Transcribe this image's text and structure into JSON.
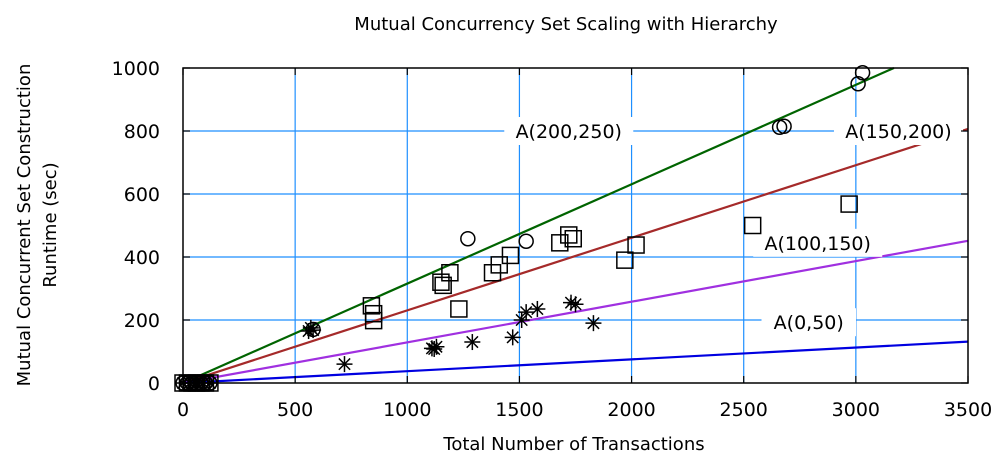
{
  "chart_data": {
    "type": "scatter",
    "title": "Mutual Concurrency Set Scaling with Hierarchy",
    "xlabel": "Total Number of Transactions",
    "ylabel": [
      "Mutual Concurrent Set Construction",
      "Runtime (sec)"
    ],
    "xlim": [
      0,
      3500
    ],
    "ylim": [
      0,
      1000
    ],
    "xticks": [
      0,
      500,
      1000,
      1500,
      2000,
      2500,
      3000,
      3500
    ],
    "yticks": [
      0,
      200,
      400,
      600,
      800,
      1000
    ],
    "grid": true,
    "grid_color": "#1e8fff",
    "lines": [
      {
        "label": "A(200,250)",
        "color": "#006400",
        "slope": 0.3155,
        "label_at": [
          1720,
          800
        ]
      },
      {
        "label": "A(150,200)",
        "color": "#a52a2a",
        "slope": 0.2305,
        "label_at": [
          3190,
          800
        ]
      },
      {
        "label": "A(100,150)",
        "color": "#a030e0",
        "slope": 0.129,
        "label_at": [
          2830,
          445
        ]
      },
      {
        "label": "A(0,50)",
        "color": "#0000e0",
        "slope": 0.0375,
        "label_at": [
          2790,
          193
        ]
      }
    ],
    "series": [
      {
        "marker": "circle",
        "points": [
          [
            1270,
            458
          ],
          [
            1530,
            450
          ],
          [
            2660,
            812
          ],
          [
            2680,
            815
          ],
          [
            3010,
            950
          ],
          [
            3030,
            985
          ],
          [
            580,
            170
          ],
          [
            0,
            0
          ],
          [
            20,
            0
          ],
          [
            40,
            0
          ],
          [
            60,
            0
          ],
          [
            80,
            0
          ],
          [
            100,
            0
          ],
          [
            120,
            0
          ]
        ]
      },
      {
        "marker": "square",
        "points": [
          [
            840,
            245
          ],
          [
            850,
            220
          ],
          [
            850,
            198
          ],
          [
            1150,
            320
          ],
          [
            1160,
            310
          ],
          [
            1190,
            350
          ],
          [
            1230,
            235
          ],
          [
            1380,
            350
          ],
          [
            1410,
            375
          ],
          [
            1460,
            405
          ],
          [
            1680,
            445
          ],
          [
            1720,
            470
          ],
          [
            1740,
            458
          ],
          [
            1970,
            390
          ],
          [
            2020,
            438
          ],
          [
            2540,
            500
          ],
          [
            2970,
            568
          ],
          [
            0,
            0
          ],
          [
            20,
            0
          ],
          [
            40,
            0
          ],
          [
            60,
            0
          ],
          [
            80,
            0
          ],
          [
            100,
            0
          ],
          [
            120,
            0
          ]
        ]
      },
      {
        "marker": "star",
        "points": [
          [
            560,
            165
          ],
          [
            570,
            175
          ],
          [
            580,
            168
          ],
          [
            720,
            60
          ],
          [
            1110,
            110
          ],
          [
            1120,
            108
          ],
          [
            1130,
            115
          ],
          [
            1290,
            130
          ],
          [
            1470,
            145
          ],
          [
            1510,
            200
          ],
          [
            1530,
            225
          ],
          [
            1580,
            235
          ],
          [
            1730,
            255
          ],
          [
            1750,
            250
          ],
          [
            1830,
            190
          ],
          [
            0,
            0
          ],
          [
            30,
            0
          ],
          [
            60,
            0
          ],
          [
            90,
            0
          ],
          [
            120,
            0
          ]
        ]
      }
    ]
  }
}
